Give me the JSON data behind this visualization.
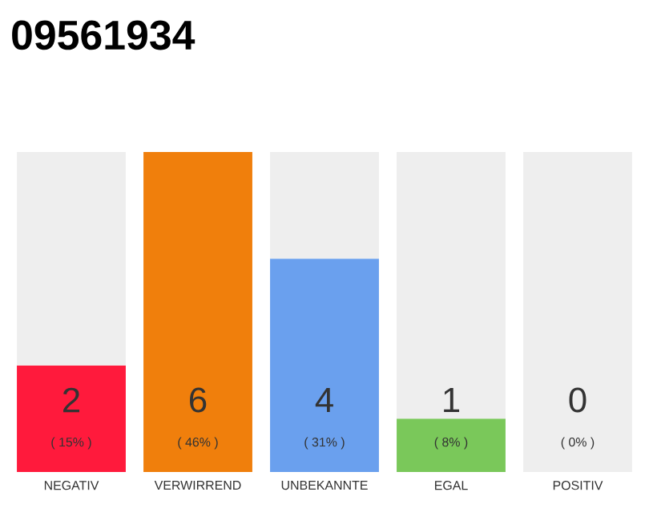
{
  "chart_data": {
    "type": "bar",
    "title": "09561934",
    "stacked": true,
    "categories": [
      "NEGATIV",
      "VERWIRREND",
      "UNBEKANNTE",
      "EGAL",
      "POSITIV"
    ],
    "series": [
      {
        "colors": [
          "#ff1a3c",
          "#f07f0c",
          "#6aa0ee",
          "#7ac85a",
          "#cccccc"
        ],
        "values": [
          2,
          6,
          4,
          1,
          0
        ],
        "value_labels": [
          "2",
          "6",
          "4",
          "1",
          null
        ]
      },
      {
        "color": "#eeeeee",
        "values": [
          4,
          0,
          2,
          5,
          6
        ]
      }
    ],
    "annotations": [
      "( 15% )",
      "( 46% )",
      "( 31% )",
      "( 8% )",
      "( 0% )",
      "0"
    ]
  }
}
